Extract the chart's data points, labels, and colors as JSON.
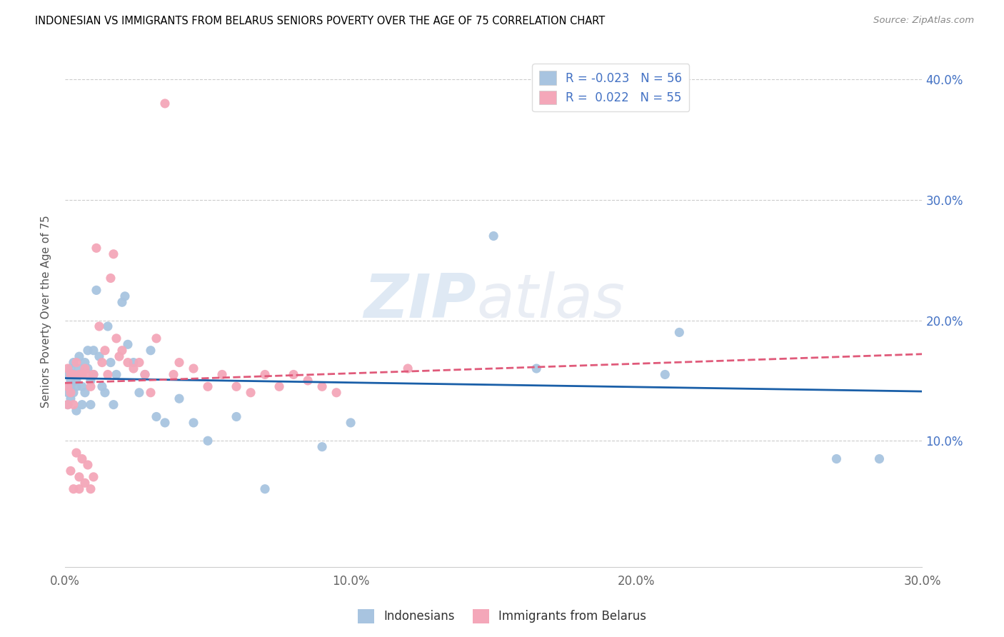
{
  "title": "INDONESIAN VS IMMIGRANTS FROM BELARUS SENIORS POVERTY OVER THE AGE OF 75 CORRELATION CHART",
  "source": "Source: ZipAtlas.com",
  "ylabel": "Seniors Poverty Over the Age of 75",
  "xlim": [
    0.0,
    0.3
  ],
  "ylim": [
    -0.005,
    0.42
  ],
  "xtick_labels": [
    "0.0%",
    "10.0%",
    "20.0%",
    "30.0%"
  ],
  "xtick_vals": [
    0.0,
    0.1,
    0.2,
    0.3
  ],
  "ytick_labels": [
    "10.0%",
    "20.0%",
    "30.0%",
    "40.0%"
  ],
  "ytick_vals": [
    0.1,
    0.2,
    0.3,
    0.4
  ],
  "legend_r_blue": "-0.023",
  "legend_n_blue": "56",
  "legend_r_pink": "0.022",
  "legend_n_pink": "55",
  "blue_color": "#a8c4e0",
  "pink_color": "#f4a7b9",
  "trend_blue_color": "#1a5fa8",
  "trend_pink_color": "#e05a7a",
  "watermark_zip": "ZIP",
  "watermark_atlas": "atlas",
  "indonesians_x": [
    0.001,
    0.001,
    0.001,
    0.002,
    0.002,
    0.002,
    0.002,
    0.003,
    0.003,
    0.003,
    0.004,
    0.004,
    0.004,
    0.005,
    0.005,
    0.006,
    0.006,
    0.006,
    0.007,
    0.007,
    0.008,
    0.008,
    0.009,
    0.009,
    0.01,
    0.01,
    0.011,
    0.012,
    0.013,
    0.014,
    0.015,
    0.016,
    0.017,
    0.018,
    0.02,
    0.021,
    0.022,
    0.024,
    0.026,
    0.028,
    0.03,
    0.032,
    0.035,
    0.04,
    0.045,
    0.05,
    0.06,
    0.07,
    0.09,
    0.1,
    0.15,
    0.165,
    0.21,
    0.215,
    0.27,
    0.285
  ],
  "indonesians_y": [
    0.155,
    0.14,
    0.13,
    0.16,
    0.145,
    0.135,
    0.15,
    0.155,
    0.14,
    0.165,
    0.15,
    0.125,
    0.145,
    0.16,
    0.17,
    0.155,
    0.13,
    0.145,
    0.165,
    0.14,
    0.16,
    0.175,
    0.15,
    0.13,
    0.155,
    0.175,
    0.225,
    0.17,
    0.145,
    0.14,
    0.195,
    0.165,
    0.13,
    0.155,
    0.215,
    0.22,
    0.18,
    0.165,
    0.14,
    0.155,
    0.175,
    0.12,
    0.115,
    0.135,
    0.115,
    0.1,
    0.12,
    0.06,
    0.095,
    0.115,
    0.27,
    0.16,
    0.155,
    0.19,
    0.085,
    0.085
  ],
  "belarus_x": [
    0.001,
    0.001,
    0.001,
    0.002,
    0.002,
    0.002,
    0.003,
    0.003,
    0.003,
    0.004,
    0.004,
    0.005,
    0.005,
    0.005,
    0.006,
    0.006,
    0.007,
    0.007,
    0.008,
    0.008,
    0.009,
    0.009,
    0.01,
    0.01,
    0.011,
    0.012,
    0.013,
    0.014,
    0.015,
    0.016,
    0.017,
    0.018,
    0.019,
    0.02,
    0.022,
    0.024,
    0.026,
    0.028,
    0.03,
    0.032,
    0.035,
    0.038,
    0.04,
    0.045,
    0.05,
    0.055,
    0.06,
    0.065,
    0.07,
    0.075,
    0.08,
    0.085,
    0.09,
    0.095,
    0.12
  ],
  "belarus_y": [
    0.145,
    0.16,
    0.13,
    0.155,
    0.14,
    0.075,
    0.155,
    0.13,
    0.06,
    0.165,
    0.09,
    0.155,
    0.07,
    0.06,
    0.155,
    0.085,
    0.16,
    0.065,
    0.155,
    0.08,
    0.145,
    0.06,
    0.155,
    0.07,
    0.26,
    0.195,
    0.165,
    0.175,
    0.155,
    0.235,
    0.255,
    0.185,
    0.17,
    0.175,
    0.165,
    0.16,
    0.165,
    0.155,
    0.14,
    0.185,
    0.38,
    0.155,
    0.165,
    0.16,
    0.145,
    0.155,
    0.145,
    0.14,
    0.155,
    0.145,
    0.155,
    0.15,
    0.145,
    0.14,
    0.16
  ],
  "trend_blue_x0": 0.0,
  "trend_blue_y0": 0.152,
  "trend_blue_x1": 0.3,
  "trend_blue_y1": 0.141,
  "trend_pink_x0": 0.0,
  "trend_pink_y0": 0.148,
  "trend_pink_x1": 0.3,
  "trend_pink_y1": 0.172
}
